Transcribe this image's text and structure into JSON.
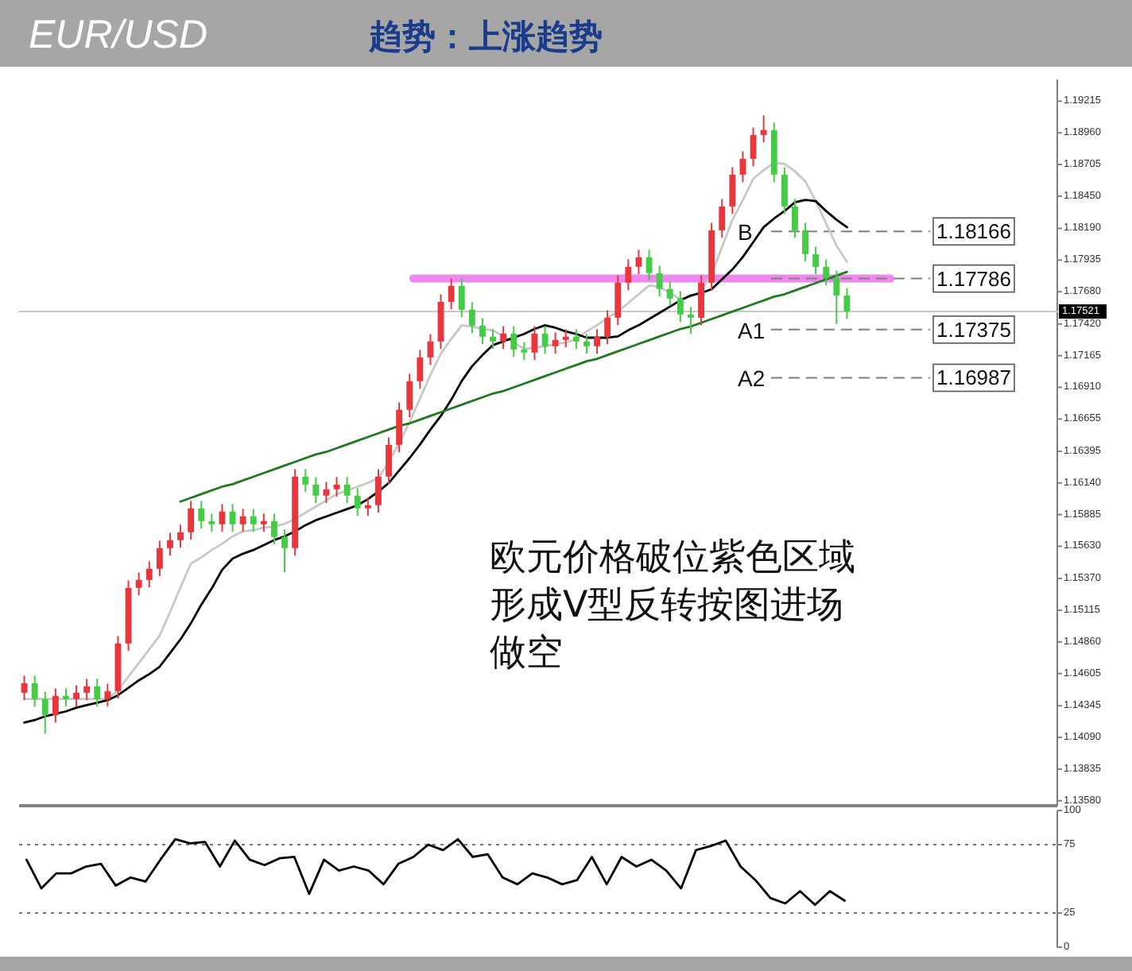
{
  "chart_data": [
    {
      "type": "candlestick",
      "title": "EUR/USD",
      "subtitle": "趋势：上涨趋势",
      "categories": [
        null,
        null,
        null,
        null,
        null,
        null,
        null,
        null,
        null,
        null,
        null,
        null,
        null,
        null,
        null,
        null,
        null,
        null,
        null,
        null,
        null,
        null,
        null,
        null,
        null,
        null,
        null,
        null,
        null,
        null,
        null,
        null,
        null,
        null,
        null,
        null,
        null,
        null,
        null,
        null,
        null,
        null,
        null,
        null,
        null,
        null,
        null,
        null,
        null,
        null,
        null,
        null,
        null,
        null,
        null,
        null,
        null,
        null,
        null,
        null,
        null,
        null,
        null,
        null,
        null,
        null,
        null,
        null,
        null,
        null,
        null,
        null,
        null,
        null,
        null,
        null,
        null,
        null,
        null,
        null
      ],
      "ohlc": [
        [
          1.1445,
          1.14587,
          1.1439,
          1.14527
        ],
        [
          1.14527,
          1.14587,
          1.14339,
          1.14399
        ],
        [
          1.14399,
          1.14459,
          1.1412,
          1.14271
        ],
        [
          1.14271,
          1.14485,
          1.14211,
          1.14425
        ],
        [
          1.14425,
          1.14485,
          1.14339,
          1.14399
        ],
        [
          1.14399,
          1.1451,
          1.14339,
          1.1445
        ],
        [
          1.1445,
          1.14562,
          1.1439,
          1.14502
        ],
        [
          1.14502,
          1.14562,
          1.14339,
          1.14399
        ],
        [
          1.14399,
          1.14523,
          1.14339,
          1.14463
        ],
        [
          1.14463,
          1.14907,
          1.14403,
          1.14847
        ],
        [
          1.14847,
          1.15355,
          1.14787,
          1.15295
        ],
        [
          1.15295,
          1.15419,
          1.15235,
          1.15359
        ],
        [
          1.15359,
          1.15509,
          1.15299,
          1.15449
        ],
        [
          1.15449,
          1.15675,
          1.15389,
          1.15615
        ],
        [
          1.15615,
          1.15739,
          1.15555,
          1.15679
        ],
        [
          1.15679,
          1.15803,
          1.15619,
          1.15743
        ],
        [
          1.15743,
          1.15995,
          1.15683,
          1.15935
        ],
        [
          1.15935,
          1.15995,
          1.15773,
          1.15833
        ],
        [
          1.15833,
          1.15893,
          1.15747,
          1.15807
        ],
        [
          1.15807,
          1.1597,
          1.15747,
          1.1591
        ],
        [
          1.1591,
          1.1597,
          1.15747,
          1.15807
        ],
        [
          1.15807,
          1.15931,
          1.15747,
          1.15871
        ],
        [
          1.15871,
          1.15931,
          1.15747,
          1.15807
        ],
        [
          1.15807,
          1.15893,
          1.15747,
          1.15833
        ],
        [
          1.15833,
          1.15893,
          1.15645,
          1.15705
        ],
        [
          1.15705,
          1.15765,
          1.1542,
          1.15615
        ],
        [
          1.15615,
          1.16251,
          1.15555,
          1.16191
        ],
        [
          1.16191,
          1.16251,
          1.16067,
          1.16127
        ],
        [
          1.16127,
          1.16187,
          1.15978,
          1.16038
        ],
        [
          1.16038,
          1.16149,
          1.15978,
          1.16089
        ],
        [
          1.16089,
          1.16187,
          1.16029,
          1.16127
        ],
        [
          1.16127,
          1.16187,
          1.15978,
          1.16038
        ],
        [
          1.16038,
          1.16098,
          1.15875,
          1.15935
        ],
        [
          1.15935,
          1.16021,
          1.15875,
          1.15961
        ],
        [
          1.15961,
          1.16251,
          1.15901,
          1.16191
        ],
        [
          1.16191,
          1.16507,
          1.16131,
          1.16447
        ],
        [
          1.16447,
          1.16789,
          1.16387,
          1.16729
        ],
        [
          1.16729,
          1.17019,
          1.16669,
          1.16959
        ],
        [
          1.16959,
          1.17211,
          1.16899,
          1.17151
        ],
        [
          1.17151,
          1.17339,
          1.17091,
          1.17279
        ],
        [
          1.17279,
          1.17659,
          1.17219,
          1.17599
        ],
        [
          1.17599,
          1.17787,
          1.17539,
          1.17727
        ],
        [
          1.17727,
          1.17787,
          1.17475,
          1.17535
        ],
        [
          1.17535,
          1.17595,
          1.17347,
          1.17407
        ],
        [
          1.17407,
          1.17467,
          1.17258,
          1.17318
        ],
        [
          1.17318,
          1.17378,
          1.17219,
          1.17279
        ],
        [
          1.17279,
          1.17403,
          1.17219,
          1.17343
        ],
        [
          1.17343,
          1.17403,
          1.17155,
          1.17215
        ],
        [
          1.17215,
          1.17275,
          1.1713,
          1.1719
        ],
        [
          1.1719,
          1.17403,
          1.1713,
          1.17343
        ],
        [
          1.17343,
          1.17403,
          1.17181,
          1.17241
        ],
        [
          1.17241,
          1.17352,
          1.17181,
          1.17292
        ],
        [
          1.17292,
          1.17378,
          1.17232,
          1.17318
        ],
        [
          1.17318,
          1.17378,
          1.17219,
          1.17279
        ],
        [
          1.17279,
          1.17339,
          1.17181,
          1.17241
        ],
        [
          1.17241,
          1.17378,
          1.17181,
          1.17318
        ],
        [
          1.17318,
          1.17531,
          1.17258,
          1.17471
        ],
        [
          1.17471,
          1.17813,
          1.17411,
          1.17753
        ],
        [
          1.17753,
          1.17941,
          1.17693,
          1.17881
        ],
        [
          1.17881,
          1.18018,
          1.17821,
          1.17958
        ],
        [
          1.17958,
          1.18018,
          1.1777,
          1.1783
        ],
        [
          1.1783,
          1.1789,
          1.17642,
          1.17702
        ],
        [
          1.17702,
          1.17762,
          1.17565,
          1.17625
        ],
        [
          1.17625,
          1.17685,
          1.17437,
          1.17497
        ],
        [
          1.17497,
          1.17557,
          1.1734,
          1.17471
        ],
        [
          1.17471,
          1.17813,
          1.17411,
          1.17753
        ],
        [
          1.17753,
          1.18235,
          1.17693,
          1.18175
        ],
        [
          1.18175,
          1.18427,
          1.18115,
          1.18367
        ],
        [
          1.18367,
          1.18683,
          1.18307,
          1.18623
        ],
        [
          1.18623,
          1.18811,
          1.18563,
          1.18751
        ],
        [
          1.18751,
          1.19003,
          1.18691,
          1.18943
        ],
        [
          1.18943,
          1.191,
          1.18883,
          1.18982
        ],
        [
          1.18982,
          1.19042,
          1.18563,
          1.18623
        ],
        [
          1.18623,
          1.18683,
          1.18307,
          1.18367
        ],
        [
          1.18367,
          1.18427,
          1.18115,
          1.18175
        ],
        [
          1.18175,
          1.18235,
          1.17923,
          1.17983
        ],
        [
          1.17983,
          1.18043,
          1.17821,
          1.17881
        ],
        [
          1.17881,
          1.17941,
          1.17731,
          1.17791
        ],
        [
          1.17791,
          1.17851,
          1.1742,
          1.1765
        ],
        [
          1.1765,
          1.1771,
          1.17461,
          1.17521
        ]
      ],
      "colors": [
        "#e8363c",
        "#44cc44",
        "#44cc44",
        "#e8363c",
        "#44cc44",
        "#e8363c",
        "#e8363c",
        "#44cc44",
        "#e8363c",
        "#e8363c",
        "#e8363c",
        "#e8363c",
        "#e8363c",
        "#e8363c",
        "#e8363c",
        "#e8363c",
        "#e8363c",
        "#44cc44",
        "#44cc44",
        "#e8363c",
        "#44cc44",
        "#e8363c",
        "#44cc44",
        "#e8363c",
        "#44cc44",
        "#44cc44",
        "#e8363c",
        "#44cc44",
        "#44cc44",
        "#e8363c",
        "#e8363c",
        "#44cc44",
        "#44cc44",
        "#e8363c",
        "#e8363c",
        "#e8363c",
        "#e8363c",
        "#e8363c",
        "#e8363c",
        "#e8363c",
        "#e8363c",
        "#e8363c",
        "#44cc44",
        "#44cc44",
        "#44cc44",
        "#44cc44",
        "#e8363c",
        "#44cc44",
        "#44cc44",
        "#e8363c",
        "#44cc44",
        "#e8363c",
        "#e8363c",
        "#44cc44",
        "#44cc44",
        "#e8363c",
        "#e8363c",
        "#e8363c",
        "#e8363c",
        "#e8363c",
        "#44cc44",
        "#44cc44",
        "#44cc44",
        "#44cc44",
        "#44cc44",
        "#e8363c",
        "#e8363c",
        "#e8363c",
        "#e8363c",
        "#e8363c",
        "#e8363c",
        "#e8363c",
        "#44cc44",
        "#44cc44",
        "#44cc44",
        "#44cc44",
        "#44cc44",
        "#44cc44",
        "#44cc44",
        "#44cc44"
      ],
      "series": [
        {
          "type": "line",
          "color": "#c8c8c8",
          "values": [
            1.144,
            1.144,
            1.144,
            1.144,
            1.144,
            1.144,
            1.144,
            1.144,
            1.144,
            1.1447,
            1.1458,
            1.1469,
            1.148,
            1.1491,
            1.151,
            1.153,
            1.1549,
            1.1554,
            1.156,
            1.1565,
            1.1571,
            1.1575,
            1.1576,
            1.1578,
            1.1579,
            1.1581,
            1.1585,
            1.159,
            1.1595,
            1.16,
            1.1605,
            1.1608,
            1.1611,
            1.1614,
            1.1618,
            1.1631,
            1.1646,
            1.1663,
            1.1682,
            1.1701,
            1.1718,
            1.173,
            1.1741,
            1.174,
            1.1738,
            1.1737,
            1.1732,
            1.1727,
            1.1722,
            1.1723,
            1.1724,
            1.1726,
            1.1727,
            1.173,
            1.1736,
            1.1741,
            1.1747,
            1.1752,
            1.1759,
            1.1766,
            1.1773,
            1.1772,
            1.1767,
            1.1762,
            1.1764,
            1.1769,
            1.1782,
            1.1804,
            1.1826,
            1.1842,
            1.1859,
            1.1866,
            1.1872,
            1.1871,
            1.1865,
            1.1857,
            1.1841,
            1.1823,
            1.1805,
            1.1792
          ]
        },
        {
          "type": "line",
          "color": "#000000",
          "values": [
            1.1421,
            1.1423,
            1.1426,
            1.1428,
            1.143,
            1.1433,
            1.1435,
            1.1437,
            1.1439,
            1.1443,
            1.1449,
            1.1455,
            1.146,
            1.1466,
            1.1477,
            1.1488,
            1.1501,
            1.1516,
            1.1529,
            1.1544,
            1.1553,
            1.1557,
            1.156,
            1.1564,
            1.1568,
            1.1571,
            1.1575,
            1.158,
            1.1584,
            1.1587,
            1.159,
            1.1593,
            1.1596,
            1.1601,
            1.1607,
            1.1614,
            1.1624,
            1.1634,
            1.1645,
            1.1657,
            1.1668,
            1.1681,
            1.1696,
            1.1708,
            1.1717,
            1.1725,
            1.1728,
            1.1731,
            1.1734,
            1.1738,
            1.1741,
            1.1739,
            1.1736,
            1.1734,
            1.1731,
            1.1731,
            1.1731,
            1.1732,
            1.1737,
            1.1741,
            1.1746,
            1.1751,
            1.1756,
            1.1761,
            1.1765,
            1.1767,
            1.177,
            1.1778,
            1.1786,
            1.1796,
            1.1808,
            1.182,
            1.1827,
            1.1833,
            1.184,
            1.1842,
            1.1841,
            1.1833,
            1.1826,
            1.182
          ]
        },
        {
          "type": "line",
          "color": "#1e7a1e",
          "values": [
            null,
            null,
            null,
            null,
            null,
            null,
            null,
            null,
            null,
            null,
            null,
            null,
            null,
            null,
            null,
            1.1599,
            1.1602,
            1.1605,
            1.1608,
            1.1611,
            1.1613,
            1.1616,
            1.1619,
            1.1622,
            1.1625,
            1.1628,
            1.1631,
            1.1634,
            1.1637,
            1.1639,
            1.1642,
            1.1645,
            1.1648,
            1.1651,
            1.1654,
            1.1657,
            1.166,
            1.1662,
            1.1665,
            1.1668,
            1.1671,
            1.1674,
            1.1677,
            1.168,
            1.1683,
            1.1686,
            1.1688,
            1.1691,
            1.1694,
            1.1697,
            1.17,
            1.1703,
            1.1706,
            1.1709,
            1.1712,
            1.1714,
            1.1717,
            1.172,
            1.1723,
            1.1726,
            1.1729,
            1.1732,
            1.1735,
            1.1738,
            1.174,
            1.1743,
            1.1746,
            1.1749,
            1.1752,
            1.1755,
            1.1758,
            1.1761,
            1.1764,
            1.1766,
            1.1769,
            1.1772,
            1.1775,
            1.1778,
            1.1781,
            1.1784
          ]
        }
      ],
      "ylim": [
        1.1354,
        1.1939
      ],
      "yticks": [
        {
          "value": 1.19215,
          "label": "1.19215"
        },
        {
          "value": 1.1896,
          "label": "1.18960"
        },
        {
          "value": 1.18705,
          "label": "1.18705"
        },
        {
          "value": 1.1845,
          "label": "1.18450"
        },
        {
          "value": 1.1819,
          "label": "1.18190"
        },
        {
          "value": 1.17935,
          "label": "1.17935"
        },
        {
          "value": 1.1768,
          "label": "1.17680"
        },
        {
          "value": 1.1742,
          "label": "1.17420"
        },
        {
          "value": 1.17165,
          "label": "1.17165"
        },
        {
          "value": 1.1691,
          "label": "1.16910"
        },
        {
          "value": 1.16655,
          "label": "1.16655"
        },
        {
          "value": 1.16395,
          "label": "1.16395"
        },
        {
          "value": 1.1614,
          "label": "1.16140"
        },
        {
          "value": 1.15885,
          "label": "1.15885"
        },
        {
          "value": 1.1563,
          "label": "1.15630"
        },
        {
          "value": 1.1537,
          "label": "1.15370"
        },
        {
          "value": 1.15115,
          "label": "1.15115"
        },
        {
          "value": 1.1486,
          "label": "1.14860"
        },
        {
          "value": 1.14605,
          "label": "1.14605"
        },
        {
          "value": 1.14345,
          "label": "1.14345"
        },
        {
          "value": 1.1409,
          "label": "1.14090"
        },
        {
          "value": 1.13835,
          "label": "1.13835"
        },
        {
          "value": 1.1358,
          "label": "1.13580"
        }
      ],
      "tick_labels": "y",
      "ref_lines": [
        {
          "axis": "y",
          "value": 1.17521,
          "label": "1.17521",
          "color": "#c8c8c8"
        },
        {
          "axis": "y",
          "value": 1.17786,
          "color": "#ee88ee"
        },
        {
          "axis": "y",
          "value": 1.18166,
          "label": "1.18166",
          "color": "#808080",
          "line_style": "dashed"
        },
        {
          "axis": "y",
          "value": 1.17786,
          "label": "1.17786",
          "color": "#808080",
          "line_style": "dashed"
        },
        {
          "axis": "y",
          "value": 1.17375,
          "label": "1.17375",
          "color": "#808080",
          "line_style": "dashed"
        },
        {
          "axis": "y",
          "value": 1.16987,
          "label": "1.16987",
          "color": "#808080",
          "line_style": "dashed"
        }
      ],
      "annotations": [
        "B",
        "A1",
        "A2",
        "欧元价格破位紫色区域形成V型反转按图进场做空"
      ]
    },
    {
      "type": "line",
      "categories": [
        null,
        null,
        null,
        null,
        null,
        null,
        null,
        null,
        null,
        null,
        null,
        null,
        null,
        null,
        null,
        null,
        null,
        null,
        null,
        null,
        null,
        null,
        null,
        null,
        null,
        null,
        null,
        null,
        null,
        null,
        null,
        null,
        null,
        null,
        null,
        null,
        null,
        null,
        null,
        null,
        null,
        null,
        null,
        null,
        null,
        null,
        null,
        null,
        null,
        null,
        null,
        null,
        null,
        null,
        null,
        null
      ],
      "series": [
        {
          "color": "#000000",
          "values": [
            64,
            43,
            54,
            54,
            59,
            61,
            45,
            51,
            48,
            64,
            79,
            76,
            77,
            59,
            78,
            64,
            60,
            65,
            66,
            39,
            64,
            56,
            59,
            56,
            46,
            61,
            66,
            75,
            71,
            79,
            66,
            68,
            51,
            46,
            54,
            51,
            46,
            49,
            66,
            46,
            66,
            59,
            64,
            56,
            43,
            71,
            74,
            78,
            59,
            49,
            36,
            32,
            41,
            31,
            41,
            34
          ]
        }
      ],
      "ylim": [
        0,
        100
      ],
      "yticks": [
        {
          "value": 0,
          "label": "0"
        },
        {
          "value": 25,
          "label": "25"
        },
        {
          "value": 75,
          "label": "75"
        },
        {
          "value": 100,
          "label": "100"
        }
      ],
      "tick_labels": "y",
      "ref_lines": [
        {
          "axis": "y",
          "value": 25,
          "line_style": "dotted",
          "color": "#777777"
        },
        {
          "axis": "y",
          "value": 75,
          "line_style": "dotted",
          "color": "#777777"
        }
      ]
    }
  ]
}
